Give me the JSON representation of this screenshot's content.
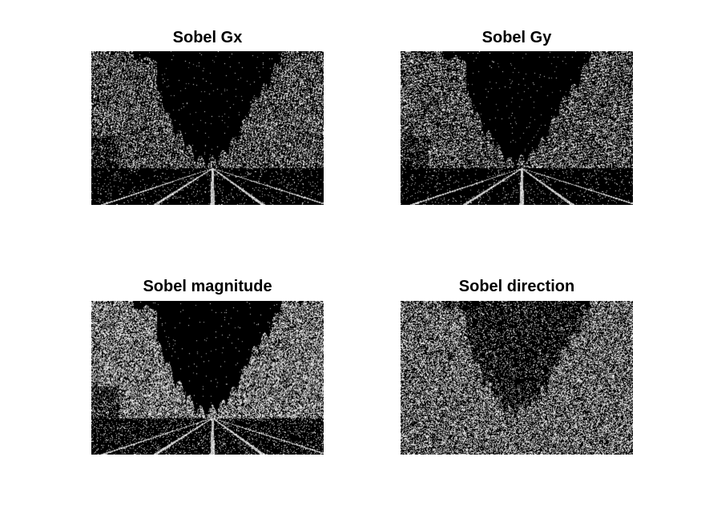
{
  "figure": {
    "panels": [
      {
        "title": "Sobel Gx"
      },
      {
        "title": "Sobel Gy"
      },
      {
        "title": "Sobel magnitude"
      },
      {
        "title": "Sobel direction"
      }
    ]
  }
}
